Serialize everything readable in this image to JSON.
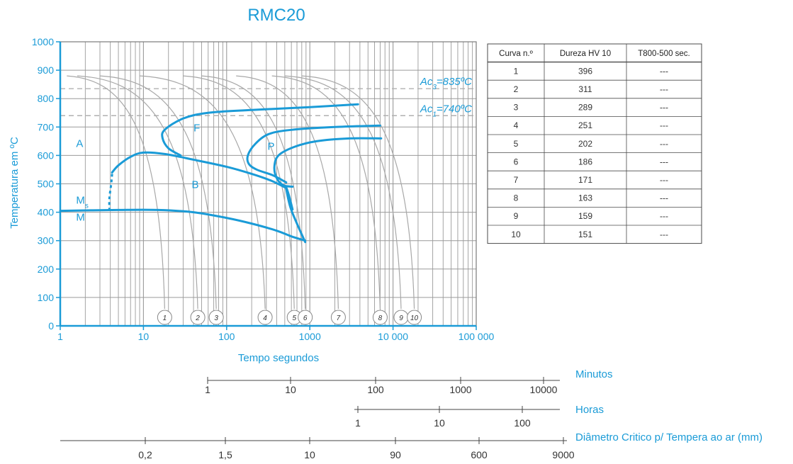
{
  "colors": {
    "accent": "#1a9bd7",
    "grid": "#9a9a9a",
    "cooling_curve": "#a8a8a8",
    "text": "#333333"
  },
  "chart_data": {
    "type": "line",
    "title": "RMC20",
    "xlabel": "Tempo segundos",
    "ylabel": "Temperatura em ºC",
    "x_scale": "log",
    "xlim": [
      1,
      100000
    ],
    "ylim": [
      0,
      1000
    ],
    "grid": true,
    "x_ticks": [
      "1",
      "10",
      "100",
      "1000",
      "10 000",
      "100 000"
    ],
    "y_ticks": [
      "0",
      "100",
      "200",
      "300",
      "400",
      "500",
      "600",
      "700",
      "800",
      "900",
      "1000"
    ],
    "reference_lines": [
      {
        "label": "Ac3=835ºC",
        "label_main": "Ac",
        "label_sub": "3",
        "label_rest": "=835ºC",
        "y": 835
      },
      {
        "label": "Ac1=740ºC",
        "label_main": "Ac",
        "label_sub": "1",
        "label_rest": "=740ºC",
        "y": 740
      }
    ],
    "region_labels": [
      {
        "text": "A",
        "t": 1.55,
        "T": 630
      },
      {
        "text": "F",
        "t": 40,
        "T": 685
      },
      {
        "text": "P",
        "t": 310,
        "T": 620
      },
      {
        "text": "B",
        "t": 38,
        "T": 485
      },
      {
        "text": "M",
        "t": 1.55,
        "T": 370
      },
      {
        "text": "M",
        "sub": "s",
        "t": 1.55,
        "T": 430
      }
    ],
    "transformation_curves": [
      {
        "name": "F",
        "points": [
          [
            3800,
            780
          ],
          [
            1000,
            770
          ],
          [
            200,
            760
          ],
          [
            60,
            750
          ],
          [
            30,
            730
          ],
          [
            18,
            690
          ],
          [
            17,
            660
          ],
          [
            20,
            625
          ],
          [
            28,
            600
          ]
        ]
      },
      {
        "name": "P",
        "points": [
          [
            7000,
            705
          ],
          [
            2000,
            700
          ],
          [
            600,
            690
          ],
          [
            320,
            675
          ],
          [
            220,
            640
          ],
          [
            180,
            600
          ],
          [
            185,
            570
          ],
          [
            230,
            550
          ],
          [
            360,
            530
          ],
          [
            520,
            505
          ]
        ]
      },
      {
        "name": "P2",
        "points": [
          [
            7200,
            660
          ],
          [
            3000,
            660
          ],
          [
            1200,
            650
          ],
          [
            650,
            630
          ],
          [
            420,
            600
          ],
          [
            375,
            560
          ],
          [
            400,
            520
          ],
          [
            480,
            495
          ],
          [
            620,
            490
          ]
        ]
      },
      {
        "name": "B",
        "points": [
          [
            4.2,
            540
          ],
          [
            5,
            565
          ],
          [
            7,
            595
          ],
          [
            10,
            610
          ],
          [
            18,
            605
          ],
          [
            40,
            585
          ],
          [
            100,
            560
          ],
          [
            200,
            535
          ],
          [
            350,
            510
          ],
          [
            520,
            485
          ]
        ]
      },
      {
        "name": "B_bottom",
        "points": [
          [
            1,
            405
          ],
          [
            5,
            408
          ],
          [
            15,
            408
          ],
          [
            40,
            400
          ],
          [
            100,
            380
          ],
          [
            200,
            360
          ],
          [
            400,
            335
          ],
          [
            600,
            315
          ],
          [
            880,
            300
          ]
        ]
      },
      {
        "name": "B_nose",
        "points": [
          [
            880,
            295
          ],
          [
            700,
            360
          ],
          [
            580,
            420
          ],
          [
            520,
            485
          ],
          [
            560,
            460
          ],
          [
            620,
            410
          ]
        ]
      }
    ],
    "ms_dashed": [
      [
        4.2,
        535
      ],
      [
        4.1,
        500
      ],
      [
        3.9,
        450
      ],
      [
        3.9,
        410
      ]
    ],
    "cooling_curves": [
      {
        "name": "1",
        "start_t": 1.2,
        "end_t": 18
      },
      {
        "name": "2",
        "start_t": 1.6,
        "end_t": 45
      },
      {
        "name": "3",
        "start_t": 3,
        "end_t": 75
      },
      {
        "name": "4",
        "start_t": 9,
        "end_t": 290
      },
      {
        "name": "5",
        "start_t": 30,
        "end_t": 650
      },
      {
        "name": "6",
        "start_t": 50,
        "end_t": 880
      },
      {
        "name": "7",
        "start_t": 130,
        "end_t": 2200
      },
      {
        "name": "8",
        "start_t": 350,
        "end_t": 7000
      },
      {
        "name": "9",
        "start_t": 500,
        "end_t": 12500
      },
      {
        "name": "10",
        "start_t": 800,
        "end_t": 18000
      }
    ],
    "table": {
      "headers": [
        "Curva n.º",
        "Dureza HV 10",
        "T800-500 sec."
      ],
      "rows": [
        [
          "1",
          "396",
          "---"
        ],
        [
          "2",
          "311",
          "---"
        ],
        [
          "3",
          "289",
          "---"
        ],
        [
          "4",
          "251",
          "---"
        ],
        [
          "5",
          "202",
          "---"
        ],
        [
          "6",
          "186",
          "---"
        ],
        [
          "7",
          "171",
          "---"
        ],
        [
          "8",
          "163",
          "---"
        ],
        [
          "9",
          "159",
          "---"
        ],
        [
          "10",
          "151",
          "---"
        ]
      ]
    },
    "secondary_scales": [
      {
        "label": "Minutos",
        "ticks": [
          "1",
          "10",
          "100",
          "1000",
          "10000"
        ]
      },
      {
        "label": "Horas",
        "ticks": [
          "1",
          "10",
          "100"
        ]
      },
      {
        "label": "Diâmetro Critico p/ Tempera ao ar (mm)",
        "ticks": [
          "0,2",
          "1,5",
          "10",
          "90",
          "600",
          "9000"
        ]
      }
    ]
  }
}
